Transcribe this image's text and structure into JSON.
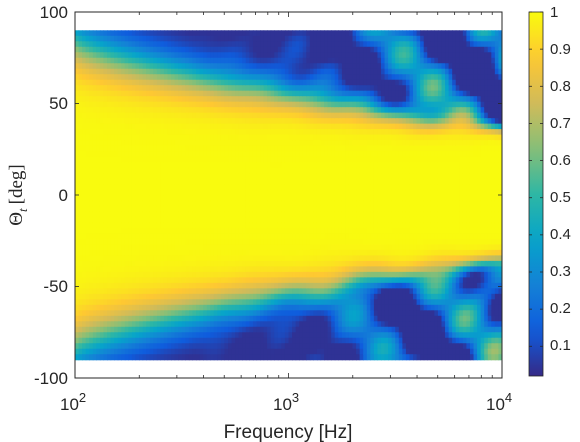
{
  "chart_data": {
    "type": "heatmap",
    "xlabel": "Frequency [Hz]",
    "ylabel_main": "Θ",
    "ylabel_sub": "t",
    "ylabel_unit": "[deg]",
    "x_scale": "log",
    "xlim": [
      100,
      10000
    ],
    "ylim": [
      -100,
      100
    ],
    "data_ylim": [
      -90,
      90
    ],
    "x_ticks": [
      {
        "value": 100,
        "base": "10",
        "exp": "2"
      },
      {
        "value": 1000,
        "base": "10",
        "exp": "3"
      },
      {
        "value": 10000,
        "base": "10",
        "exp": "4"
      }
    ],
    "y_ticks": [
      {
        "value": 100,
        "label": "100"
      },
      {
        "value": 50,
        "label": "50"
      },
      {
        "value": 0,
        "label": "0"
      },
      {
        "value": -50,
        "label": "-50"
      },
      {
        "value": -100,
        "label": "-100"
      }
    ],
    "colorbar": {
      "colormap": "parula",
      "range": [
        0.02,
        1
      ],
      "ticks": [
        {
          "value": 1,
          "label": "1"
        },
        {
          "value": 0.9,
          "label": "0.9"
        },
        {
          "value": 0.8,
          "label": "0.8"
        },
        {
          "value": 0.7,
          "label": "0.7"
        },
        {
          "value": 0.6,
          "label": "0.6"
        },
        {
          "value": 0.5,
          "label": "0.5"
        },
        {
          "value": 0.4,
          "label": "0.4"
        },
        {
          "value": 0.3,
          "label": "0.3"
        },
        {
          "value": 0.2,
          "label": "0.2"
        },
        {
          "value": 0.1,
          "label": "0.1"
        }
      ]
    },
    "grid": false,
    "colors": {
      "parula": [
        "#352a87",
        "#0f5cdd",
        "#1481d6",
        "#06a4ca",
        "#2eb7a4",
        "#87bf77",
        "#d1bb59",
        "#fec832",
        "#f9fb0e"
      ]
    }
  }
}
